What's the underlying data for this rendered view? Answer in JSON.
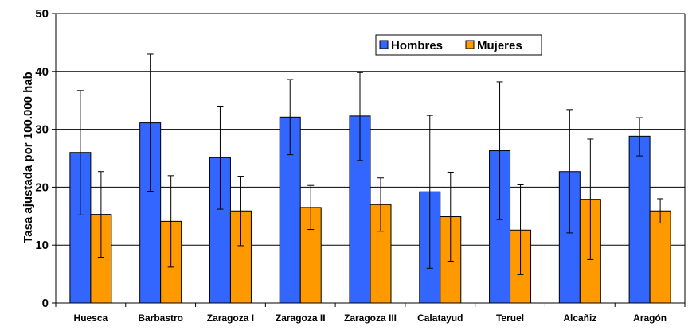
{
  "chart_data": {
    "type": "bar",
    "title": "",
    "xlabel": "",
    "ylabel": "Tasa ajustada por 100.000 hab",
    "ylim": [
      0,
      50
    ],
    "yticks": [
      0,
      10,
      20,
      30,
      40,
      50
    ],
    "grid": true,
    "legend_position": "top-right",
    "categories": [
      "Huesca",
      "Barbastro",
      "Zaragoza I",
      "Zaragoza II",
      "Zaragoza III",
      "Calatayud",
      "Teruel",
      "Alcañiz",
      "Aragón"
    ],
    "series": [
      {
        "name": "Hombres",
        "color": "#3366ff",
        "values": [
          26.0,
          31.1,
          25.1,
          32.1,
          32.3,
          19.2,
          26.3,
          22.7,
          28.8
        ],
        "error_low": [
          15.2,
          19.3,
          16.2,
          25.6,
          24.6,
          6.0,
          14.4,
          12.1,
          25.4
        ],
        "error_high": [
          36.7,
          43.0,
          34.0,
          38.6,
          39.8,
          32.4,
          38.2,
          33.4,
          32.0
        ]
      },
      {
        "name": "Mujeres",
        "color": "#ff9900",
        "values": [
          15.3,
          14.1,
          15.9,
          16.5,
          17.0,
          14.9,
          12.6,
          17.9,
          15.9
        ],
        "error_low": [
          7.9,
          6.2,
          9.9,
          12.7,
          12.4,
          7.2,
          4.9,
          7.5,
          13.8
        ],
        "error_high": [
          22.7,
          22.0,
          21.9,
          20.3,
          21.6,
          22.6,
          20.4,
          28.3,
          18.0
        ]
      }
    ]
  }
}
